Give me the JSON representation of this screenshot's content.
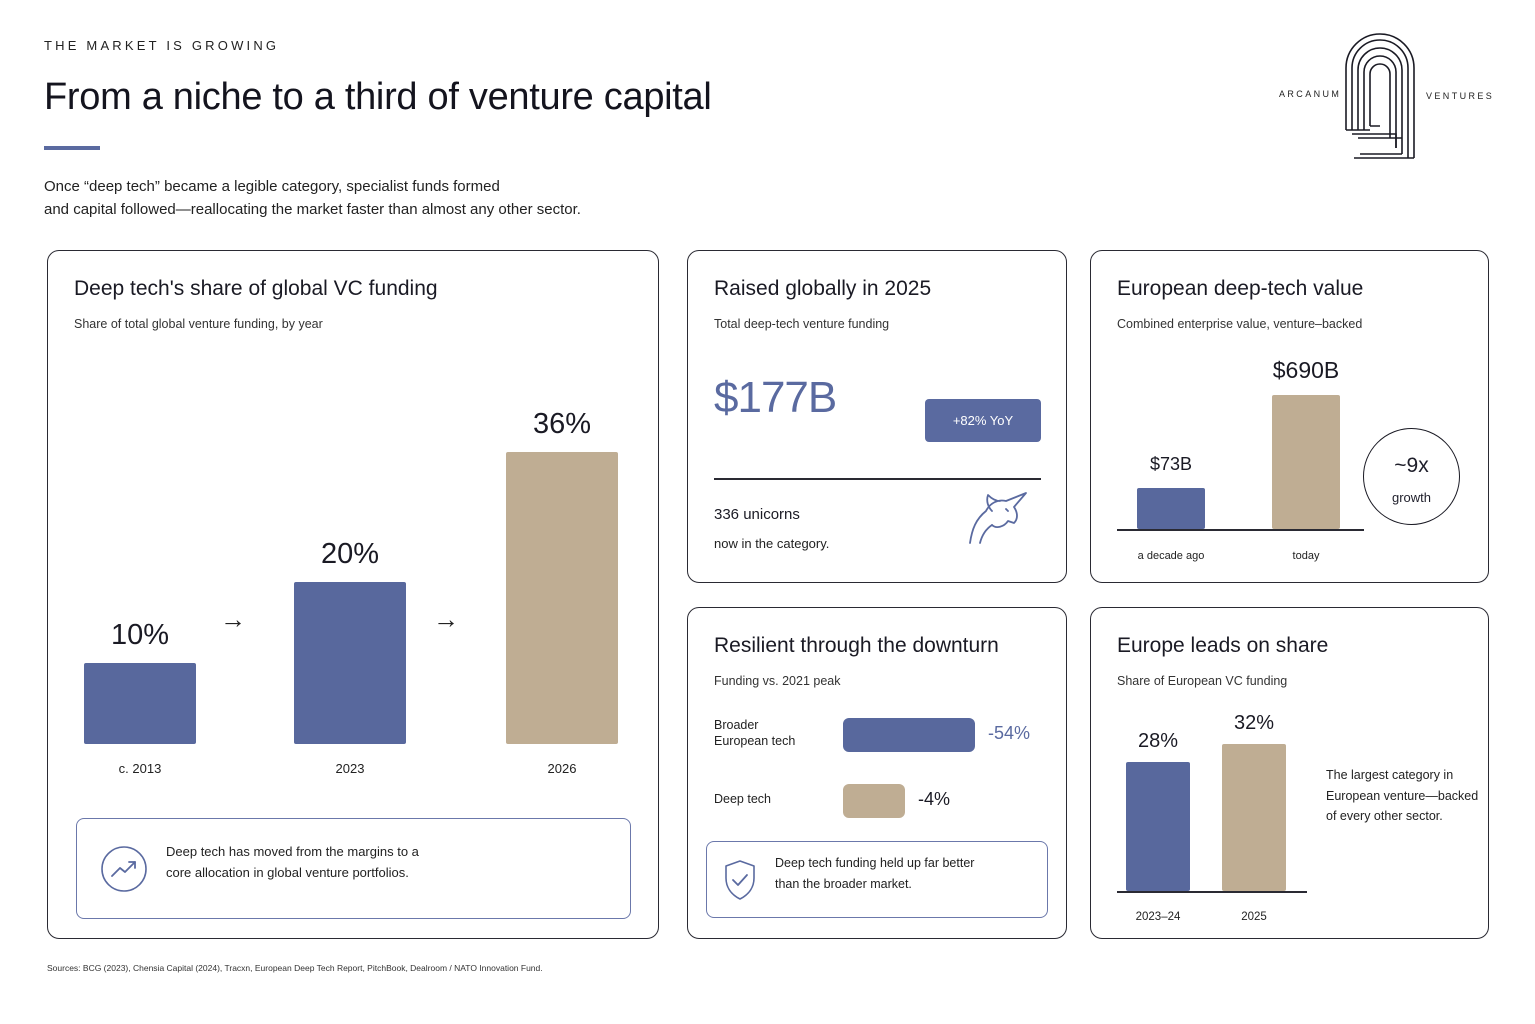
{
  "header": {
    "eyebrow": "THE MARKET IS GROWING",
    "title": "From a niche to a third of venture capital",
    "intro_line1": "Once “deep tech” became a legible category, specialist funds formed",
    "intro_line2": "and capital followed—reallocating the market faster than almost any other sector."
  },
  "logo": {
    "left": "ARCANUM",
    "right": "VENTURES",
    "icon": "arch-monogram-icon"
  },
  "colors": {
    "navy": "#58689d",
    "tan": "#bfad93",
    "accent": "#5a6aa0"
  },
  "cards": {
    "share": {
      "title": "Deep tech's share of global VC funding",
      "subtitle": "Share of total global venture funding, by year",
      "callout": {
        "line1": "Deep tech has moved from the margins to a",
        "line2": "core allocation in global venture portfolios.",
        "icon": "trend-up-icon"
      }
    },
    "raised": {
      "title": "Raised globally in 2025",
      "subtitle": "Total deep-tech venture funding",
      "amount": "$177B",
      "badge": "+82% YoY",
      "unicorns": "336 unicorns",
      "unicorns_sub": "now in the category.",
      "icon": "unicorn-icon"
    },
    "value": {
      "title": "European deep-tech value",
      "subtitle": "Combined enterprise value, venture–backed",
      "growth_num": "~9x",
      "growth_label": "growth"
    },
    "resilient": {
      "title": "Resilient through the downturn",
      "subtitle": "Funding vs. 2021 peak",
      "row1_label_a": "Broader",
      "row1_label_b": "European tech",
      "row2_label": "Deep tech",
      "callout": {
        "line1": "Deep tech funding held up far better",
        "line2": "than the broader market.",
        "icon": "shield-check-icon"
      }
    },
    "europe": {
      "title": "Europe leads on share",
      "subtitle": "Share of European VC funding",
      "note_line1": "The largest category in",
      "note_line2": "European venture—backed",
      "note_line3": "of every other sector."
    }
  },
  "chart_data": [
    {
      "type": "bar",
      "title": "Deep tech's share of global VC funding",
      "categories": [
        "c. 2013",
        "2023",
        "2026"
      ],
      "values": [
        10,
        20,
        36
      ],
      "value_labels": [
        "10%",
        "20%",
        "36%"
      ],
      "unit": "%",
      "colors": [
        "#58689d",
        "#58689d",
        "#bfad93"
      ]
    },
    {
      "type": "bar",
      "title": "European deep-tech value",
      "categories": [
        "a decade ago",
        "today"
      ],
      "values": [
        73,
        690
      ],
      "value_labels": [
        "$73B",
        "$690B"
      ],
      "unit": "$B",
      "colors": [
        "#58689d",
        "#bfad93"
      ]
    },
    {
      "type": "bar",
      "orientation": "horizontal",
      "title": "Resilient through the downturn",
      "categories": [
        "Broader European tech",
        "Deep tech"
      ],
      "values": [
        -54,
        -4
      ],
      "value_labels": [
        "-54%",
        "-4%"
      ],
      "unit": "%",
      "colors": [
        "#58689d",
        "#bfad93"
      ]
    },
    {
      "type": "bar",
      "title": "Europe leads on share",
      "categories": [
        "2023–24",
        "2025"
      ],
      "values": [
        28,
        32
      ],
      "value_labels": [
        "28%",
        "32%"
      ],
      "unit": "%",
      "colors": [
        "#58689d",
        "#bfad93"
      ]
    }
  ],
  "footer": {
    "sources": "Sources: BCG (2023), Chensia Capital (2024), Tracxn, European Deep Tech Report, PitchBook, Dealroom / NATO Innovation Fund."
  }
}
